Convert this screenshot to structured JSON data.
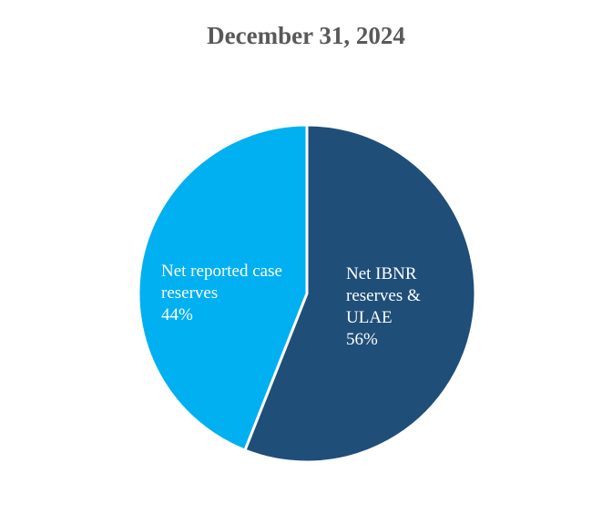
{
  "chart_data": {
    "type": "pie",
    "title": "December 31, 2024",
    "slices": [
      {
        "name": "Net IBNR reserves & ULAE",
        "label_lines": [
          "Net IBNR",
          "reserves &",
          "ULAE"
        ],
        "value": 56,
        "value_label": "56%",
        "color": "#1f4e79"
      },
      {
        "name": "Net reported case reserves",
        "label_lines": [
          "Net reported case",
          "reserves"
        ],
        "value": 44,
        "value_label": "44%",
        "color": "#00b0f0"
      }
    ],
    "legend": "none",
    "start_angle": "12 o'clock",
    "direction": "clockwise"
  }
}
